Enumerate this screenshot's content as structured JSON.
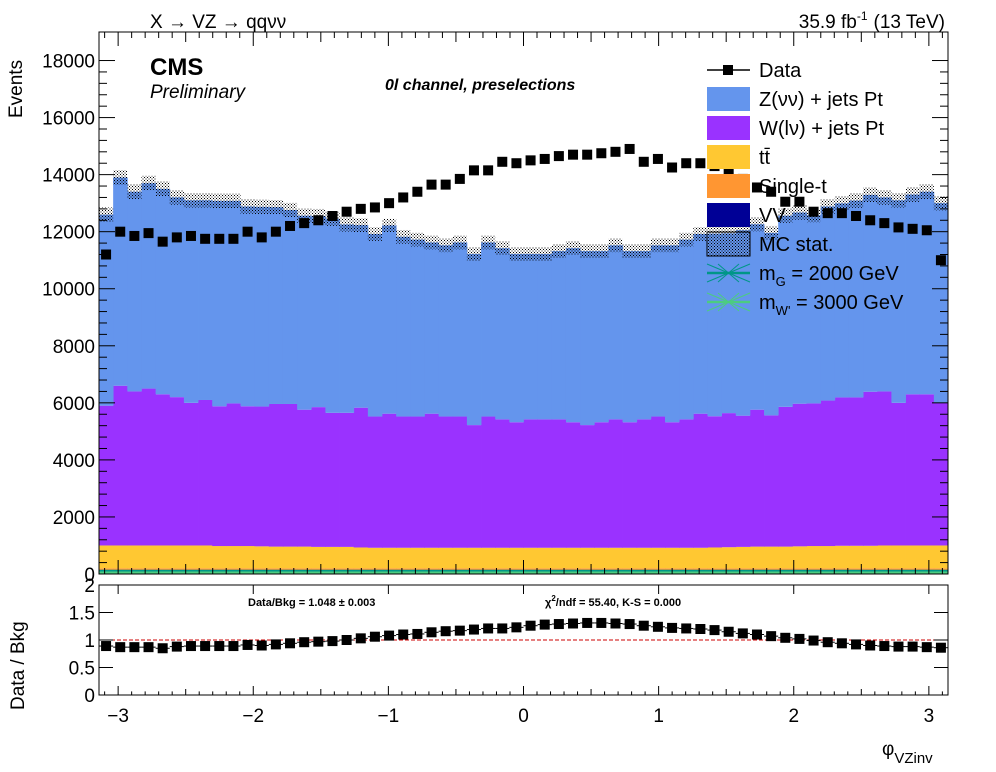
{
  "chart_data": [
    {
      "type": "area",
      "panel": "main",
      "header_left": "X → VZ → qqνν",
      "lumi": "35.9 fb",
      "lumi_sup": "-1",
      "energy": "(13 TeV)",
      "cms_label": "CMS",
      "cms_sub": "Preliminary",
      "channel_label": "0l channel, preselections",
      "ylabel": "Events",
      "xlim": [
        -3.1416,
        3.1416
      ],
      "ylim": [
        0,
        19000
      ],
      "yticks": [
        "0",
        "2000",
        "4000",
        "6000",
        "8000",
        "10000",
        "12000",
        "14000",
        "16000",
        "18000"
      ],
      "n_bins": 60,
      "legend_position": "top-right",
      "legend": [
        {
          "key": "data",
          "label": "Data"
        },
        {
          "key": "zvv",
          "label": "Z(νν) + jets Pt"
        },
        {
          "key": "wlv",
          "label": "W(lν) + jets Pt"
        },
        {
          "key": "tt",
          "label": "tt̄"
        },
        {
          "key": "st",
          "label": "Single-t"
        },
        {
          "key": "vv",
          "label": "VV"
        },
        {
          "key": "mcstat",
          "label": "MC stat."
        },
        {
          "key": "sig1",
          "label_main": "m",
          "label_sub": "G",
          "label_rest": " = 2000 GeV"
        },
        {
          "key": "sig2",
          "label_main": "m",
          "label_sub": "W'",
          "label_rest": " = 3000 GeV"
        }
      ],
      "colors": {
        "zvv": "#6495ed",
        "wlv": "#9a32ff",
        "tt": "#ffc832",
        "st": "#ff9632",
        "vv": "#000096",
        "sig1": "#009688",
        "sig2": "#4ccc80",
        "data": "#000000"
      },
      "series": [
        {
          "name": "VV",
          "key": "vv",
          "values": [
            40,
            40,
            40,
            40,
            40,
            40,
            40,
            40,
            40,
            40,
            40,
            40,
            40,
            40,
            40,
            40,
            40,
            40,
            40,
            40,
            40,
            40,
            40,
            40,
            40,
            40,
            40,
            40,
            40,
            40,
            40,
            40,
            40,
            40,
            40,
            40,
            40,
            40,
            40,
            40,
            40,
            40,
            40,
            40,
            40,
            40,
            40,
            40,
            40,
            40,
            40,
            40,
            40,
            40,
            40,
            40,
            40,
            40,
            40,
            40
          ]
        },
        {
          "name": "Single-t",
          "key": "st",
          "values": [
            160,
            160,
            160,
            160,
            160,
            160,
            160,
            160,
            160,
            160,
            160,
            160,
            160,
            160,
            160,
            160,
            160,
            160,
            160,
            160,
            160,
            160,
            160,
            160,
            160,
            160,
            160,
            160,
            160,
            160,
            160,
            160,
            160,
            160,
            160,
            160,
            160,
            160,
            160,
            160,
            160,
            160,
            160,
            160,
            160,
            160,
            160,
            160,
            160,
            160,
            160,
            160,
            160,
            160,
            160,
            160,
            160,
            160,
            160,
            160
          ]
        },
        {
          "name": "tt̄",
          "key": "tt",
          "values": [
            800,
            800,
            800,
            800,
            800,
            800,
            800,
            800,
            780,
            780,
            780,
            770,
            760,
            760,
            760,
            750,
            750,
            750,
            730,
            720,
            720,
            720,
            720,
            720,
            720,
            720,
            720,
            720,
            720,
            720,
            720,
            720,
            720,
            720,
            720,
            720,
            720,
            720,
            720,
            720,
            720,
            720,
            720,
            730,
            740,
            750,
            760,
            760,
            760,
            770,
            780,
            780,
            790,
            790,
            790,
            800,
            800,
            800,
            800,
            800
          ]
        },
        {
          "name": "W(lν) + jets Pt",
          "key": "wlv",
          "values": [
            4900,
            5600,
            5400,
            5500,
            5300,
            5200,
            5000,
            5100,
            4900,
            5000,
            4900,
            4900,
            5000,
            5000,
            4800,
            4900,
            4700,
            4700,
            4900,
            4600,
            4700,
            4600,
            4600,
            4700,
            4600,
            4600,
            4300,
            4600,
            4500,
            4400,
            4500,
            4500,
            4500,
            4400,
            4300,
            4400,
            4500,
            4400,
            4500,
            4600,
            4400,
            4500,
            4700,
            4600,
            4700,
            4600,
            4800,
            4600,
            4900,
            5000,
            5000,
            5100,
            5200,
            5200,
            5400,
            5400,
            5000,
            5300,
            5300,
            5000
          ]
        },
        {
          "name": "Z(νν) + jets Pt",
          "key": "zvv",
          "values": [
            6700,
            7300,
            7000,
            7200,
            7200,
            7000,
            7100,
            7000,
            7200,
            7100,
            7000,
            7000,
            6900,
            6800,
            6800,
            6700,
            6800,
            6600,
            6400,
            6400,
            6600,
            6300,
            6200,
            6000,
            6000,
            6100,
            6000,
            6100,
            6000,
            5900,
            5800,
            5800,
            5900,
            6100,
            6100,
            6000,
            6100,
            6000,
            5900,
            6000,
            6200,
            6300,
            6300,
            6400,
            6300,
            6500,
            6500,
            6400,
            6700,
            6700,
            6600,
            6800,
            6800,
            6900,
            6900,
            6800,
            7100,
            7000,
            7100,
            7000
          ]
        }
      ],
      "data_series": {
        "name": "Data",
        "values": [
          11200,
          12000,
          11850,
          11950,
          11650,
          11800,
          11850,
          11750,
          11750,
          11750,
          12000,
          11800,
          12000,
          12200,
          12300,
          12400,
          12550,
          12700,
          12800,
          12850,
          13000,
          13200,
          13400,
          13650,
          13650,
          13850,
          14150,
          14150,
          14450,
          14400,
          14500,
          14550,
          14650,
          14700,
          14700,
          14750,
          14800,
          14900,
          14450,
          14550,
          14250,
          14400,
          14400,
          14300,
          14050,
          13850,
          13550,
          13400,
          13050,
          13050,
          12700,
          12650,
          12650,
          12550,
          12400,
          12300,
          12150,
          12100,
          12050,
          11000
        ]
      }
    },
    {
      "type": "scatter",
      "panel": "ratio",
      "ylabel": "Data / Bkg",
      "xlabel_main": "φ",
      "xlabel_sub": "VZinv",
      "ylim": [
        0,
        2
      ],
      "yticks": [
        "0",
        "0.5",
        "1",
        "1.5",
        "2"
      ],
      "xticks": [
        "−3",
        "−2",
        "−1",
        "0",
        "1",
        "2",
        "3"
      ],
      "reference_line": 1,
      "stats_left": "Data/Bkg = 1.048  ± 0.003",
      "stats_right_chi": "χ",
      "stats_right_sup": "2",
      "stats_right_rest": "/ndf = 55.40,   K-S = 0.000",
      "values": [
        0.89,
        0.87,
        0.87,
        0.87,
        0.85,
        0.88,
        0.89,
        0.89,
        0.89,
        0.89,
        0.91,
        0.9,
        0.92,
        0.94,
        0.96,
        0.97,
        0.98,
        1.0,
        1.03,
        1.06,
        1.08,
        1.1,
        1.11,
        1.14,
        1.16,
        1.17,
        1.19,
        1.21,
        1.21,
        1.23,
        1.26,
        1.28,
        1.29,
        1.3,
        1.31,
        1.31,
        1.3,
        1.29,
        1.26,
        1.24,
        1.22,
        1.21,
        1.2,
        1.18,
        1.15,
        1.12,
        1.1,
        1.07,
        1.04,
        1.02,
        0.99,
        0.96,
        0.94,
        0.92,
        0.9,
        0.89,
        0.88,
        0.88,
        0.87,
        0.86
      ]
    }
  ]
}
